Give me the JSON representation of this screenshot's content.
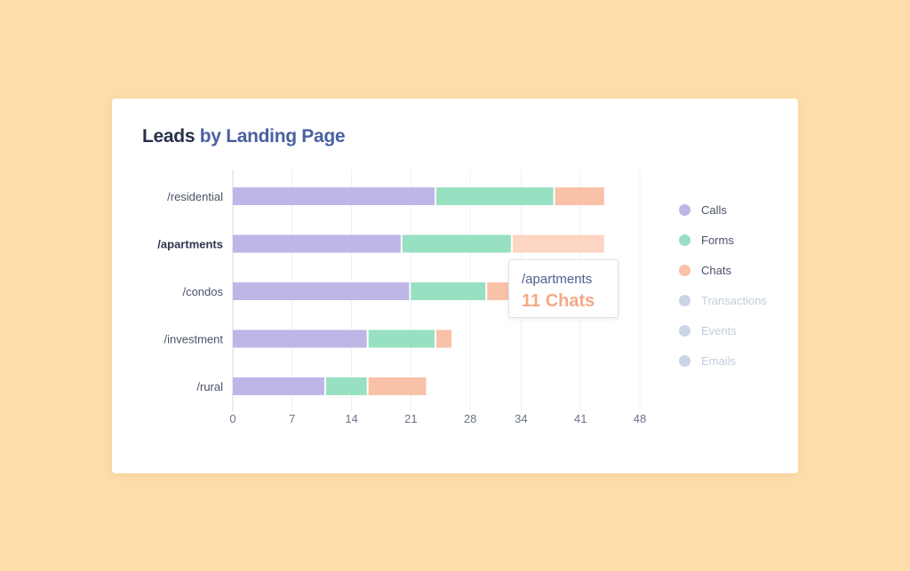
{
  "title": {
    "part1": "Leads",
    "part2": "by Landing Page"
  },
  "chart_data": {
    "type": "bar",
    "orientation": "horizontal",
    "stacked": true,
    "categories": [
      "/residential",
      "/apartments",
      "/condos",
      "/investment",
      "/rural"
    ],
    "highlighted_category": "/apartments",
    "series": [
      {
        "name": "Calls",
        "color": "#BEB6E6",
        "values": [
          24,
          20,
          21,
          16,
          11
        ]
      },
      {
        "name": "Forms",
        "color": "#98E0C2",
        "values": [
          14,
          13,
          9,
          8,
          5
        ]
      },
      {
        "name": "Chats",
        "color": "#F9C1A8",
        "highlight_color": "#FCD6C3",
        "values": [
          6,
          11,
          4,
          2,
          7
        ]
      }
    ],
    "x_ticks": [
      "0",
      "7",
      "14",
      "21",
      "28",
      "34",
      "41",
      "48"
    ],
    "xlim": [
      0,
      48
    ],
    "grid": "vertical",
    "legend_position": "right"
  },
  "legend": [
    {
      "name": "Calls",
      "color": "#BEB6E6",
      "active": true
    },
    {
      "name": "Forms",
      "color": "#98E0C2",
      "active": true
    },
    {
      "name": "Chats",
      "color": "#F9C1A8",
      "active": true
    },
    {
      "name": "Transactions",
      "color": "#C9D4E4",
      "active": false
    },
    {
      "name": "Events",
      "color": "#C9D4E4",
      "active": false
    },
    {
      "name": "Emails",
      "color": "#C9D4E4",
      "active": false
    }
  ],
  "tooltip": {
    "page": "/apartments",
    "value": "11 Chats"
  }
}
